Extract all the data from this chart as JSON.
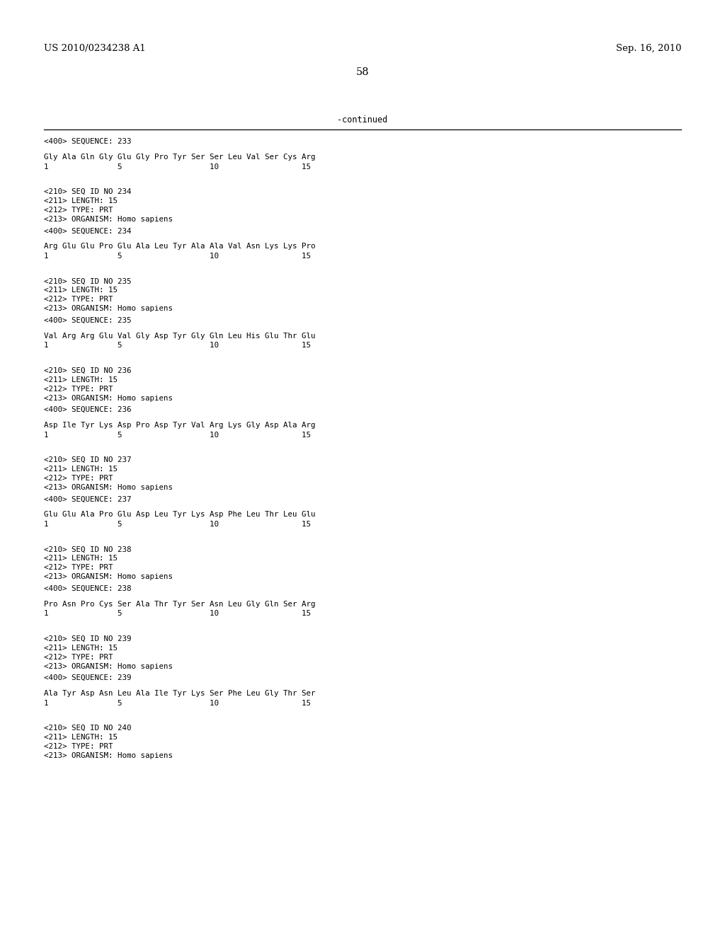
{
  "background_color": "#ffffff",
  "header_left": "US 2010/0234238 A1",
  "header_right": "Sep. 16, 2010",
  "page_number": "58",
  "continued_text": "-continued",
  "font_size_header": 9.5,
  "font_size_body": 7.8,
  "font_size_page": 10.5,
  "font_size_continued": 8.5,
  "sections": [
    {
      "tag400": "<400> SEQUENCE: 233",
      "seq_line": "Gly Ala Gln Gly Glu Gly Pro Tyr Ser Ser Leu Val Ser Cys Arg",
      "num_line": "1               5                   10                  15"
    },
    {
      "tag210": "<210> SEQ ID NO 234",
      "tag211": "<211> LENGTH: 15",
      "tag212": "<212> TYPE: PRT",
      "tag213": "<213> ORGANISM: Homo sapiens",
      "tag400": "<400> SEQUENCE: 234",
      "seq_line": "Arg Glu Glu Pro Glu Ala Leu Tyr Ala Ala Val Asn Lys Lys Pro",
      "num_line": "1               5                   10                  15"
    },
    {
      "tag210": "<210> SEQ ID NO 235",
      "tag211": "<211> LENGTH: 15",
      "tag212": "<212> TYPE: PRT",
      "tag213": "<213> ORGANISM: Homo sapiens",
      "tag400": "<400> SEQUENCE: 235",
      "seq_line": "Val Arg Arg Glu Val Gly Asp Tyr Gly Gln Leu His Glu Thr Glu",
      "num_line": "1               5                   10                  15"
    },
    {
      "tag210": "<210> SEQ ID NO 236",
      "tag211": "<211> LENGTH: 15",
      "tag212": "<212> TYPE: PRT",
      "tag213": "<213> ORGANISM: Homo sapiens",
      "tag400": "<400> SEQUENCE: 236",
      "seq_line": "Asp Ile Tyr Lys Asp Pro Asp Tyr Val Arg Lys Gly Asp Ala Arg",
      "num_line": "1               5                   10                  15"
    },
    {
      "tag210": "<210> SEQ ID NO 237",
      "tag211": "<211> LENGTH: 15",
      "tag212": "<212> TYPE: PRT",
      "tag213": "<213> ORGANISM: Homo sapiens",
      "tag400": "<400> SEQUENCE: 237",
      "seq_line": "Glu Glu Ala Pro Glu Asp Leu Tyr Lys Asp Phe Leu Thr Leu Glu",
      "num_line": "1               5                   10                  15"
    },
    {
      "tag210": "<210> SEQ ID NO 238",
      "tag211": "<211> LENGTH: 15",
      "tag212": "<212> TYPE: PRT",
      "tag213": "<213> ORGANISM: Homo sapiens",
      "tag400": "<400> SEQUENCE: 238",
      "seq_line": "Pro Asn Pro Cys Ser Ala Thr Tyr Ser Asn Leu Gly Gln Ser Arg",
      "num_line": "1               5                   10                  15"
    },
    {
      "tag210": "<210> SEQ ID NO 239",
      "tag211": "<211> LENGTH: 15",
      "tag212": "<212> TYPE: PRT",
      "tag213": "<213> ORGANISM: Homo sapiens",
      "tag400": "<400> SEQUENCE: 239",
      "seq_line": "Ala Tyr Asp Asn Leu Ala Ile Tyr Lys Ser Phe Leu Gly Thr Ser",
      "num_line": "1               5                   10                  15"
    },
    {
      "tag210": "<210> SEQ ID NO 240",
      "tag211": "<211> LENGTH: 15",
      "tag212": "<212> TYPE: PRT",
      "tag213": "<213> ORGANISM: Homo sapiens"
    }
  ]
}
